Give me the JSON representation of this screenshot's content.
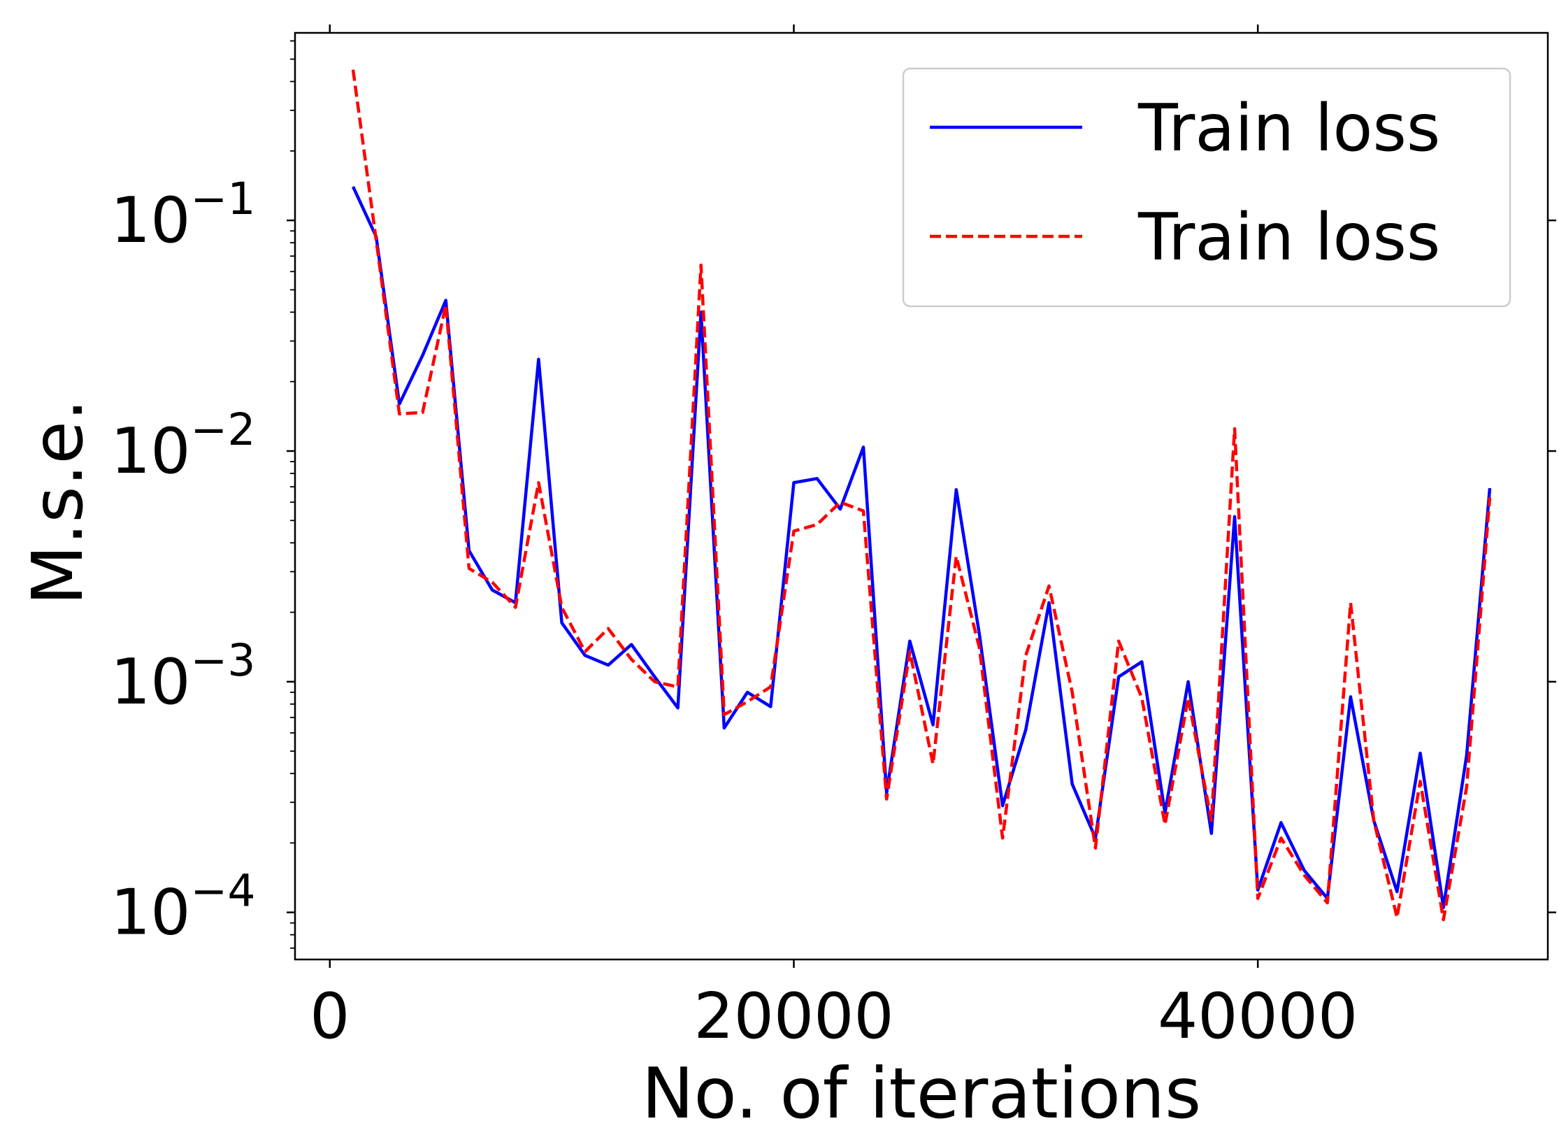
{
  "chart_data": {
    "type": "line",
    "title": "",
    "xlabel": "No. of iterations",
    "ylabel": "M.s.e.",
    "xlim": [
      -1500,
      52500
    ],
    "ylim": [
      6.25e-05,
      0.65
    ],
    "yscale": "log",
    "xticks": [
      0,
      20000,
      40000
    ],
    "xtick_labels": [
      "0",
      "20000",
      "40000"
    ],
    "yticks": [
      0.0001,
      0.001,
      0.01,
      0.1
    ],
    "ytick_labels": [
      {
        "base": "10",
        "exp": "−4"
      },
      {
        "base": "10",
        "exp": "−3"
      },
      {
        "base": "10",
        "exp": "−2"
      },
      {
        "base": "10",
        "exp": "−1"
      }
    ],
    "grid": false,
    "legend_position": "top-right",
    "x": [
      1000,
      2000,
      3000,
      4000,
      5000,
      6000,
      7000,
      8000,
      9000,
      10000,
      11000,
      12000,
      13000,
      14000,
      15000,
      16000,
      17000,
      18000,
      19000,
      20000,
      21000,
      22000,
      23000,
      24000,
      25000,
      26000,
      27000,
      28000,
      29000,
      30000,
      31000,
      32000,
      33000,
      34000,
      35000,
      36000,
      37000,
      38000,
      39000,
      40000,
      41000,
      42000,
      43000,
      44000,
      45000,
      46000,
      47000,
      48000,
      49000,
      50000
    ],
    "series": [
      {
        "name": "Train loss",
        "color": "#0000ff",
        "style": "solid",
        "values": [
          0.14,
          0.085,
          0.016,
          0.026,
          0.045,
          0.0037,
          0.0025,
          0.0022,
          0.025,
          0.0018,
          0.0013,
          0.00118,
          0.00145,
          0.00105,
          0.00077,
          0.04,
          0.00063,
          0.0009,
          0.00078,
          0.0073,
          0.0076,
          0.0056,
          0.0104,
          0.00033,
          0.0015,
          0.00065,
          0.0068,
          0.0016,
          0.00029,
          0.00062,
          0.0022,
          0.00036,
          0.00021,
          0.00105,
          0.00122,
          0.00027,
          0.001,
          0.00022,
          0.0052,
          0.000125,
          0.000245,
          0.000152,
          0.000115,
          0.00086,
          0.00025,
          0.000123,
          0.00049,
          0.000105,
          0.00048,
          0.0069
        ]
      },
      {
        "name": "Train loss",
        "color": "#ff0000",
        "style": "dashed",
        "values": [
          0.45,
          0.082,
          0.0145,
          0.0147,
          0.043,
          0.0031,
          0.0027,
          0.0021,
          0.0073,
          0.0021,
          0.00135,
          0.0017,
          0.00125,
          0.001,
          0.00095,
          0.064,
          0.00072,
          0.00082,
          0.00095,
          0.0045,
          0.0048,
          0.006,
          0.0055,
          0.00031,
          0.00135,
          0.00044,
          0.0035,
          0.0014,
          0.00021,
          0.0013,
          0.0026,
          0.0009,
          0.00019,
          0.0015,
          0.00085,
          0.00024,
          0.00085,
          0.00025,
          0.0125,
          0.000115,
          0.00021,
          0.000145,
          0.00011,
          0.0022,
          0.00025,
          9.5e-05,
          0.00037,
          9.3e-05,
          0.00035,
          0.0063
        ]
      }
    ]
  }
}
